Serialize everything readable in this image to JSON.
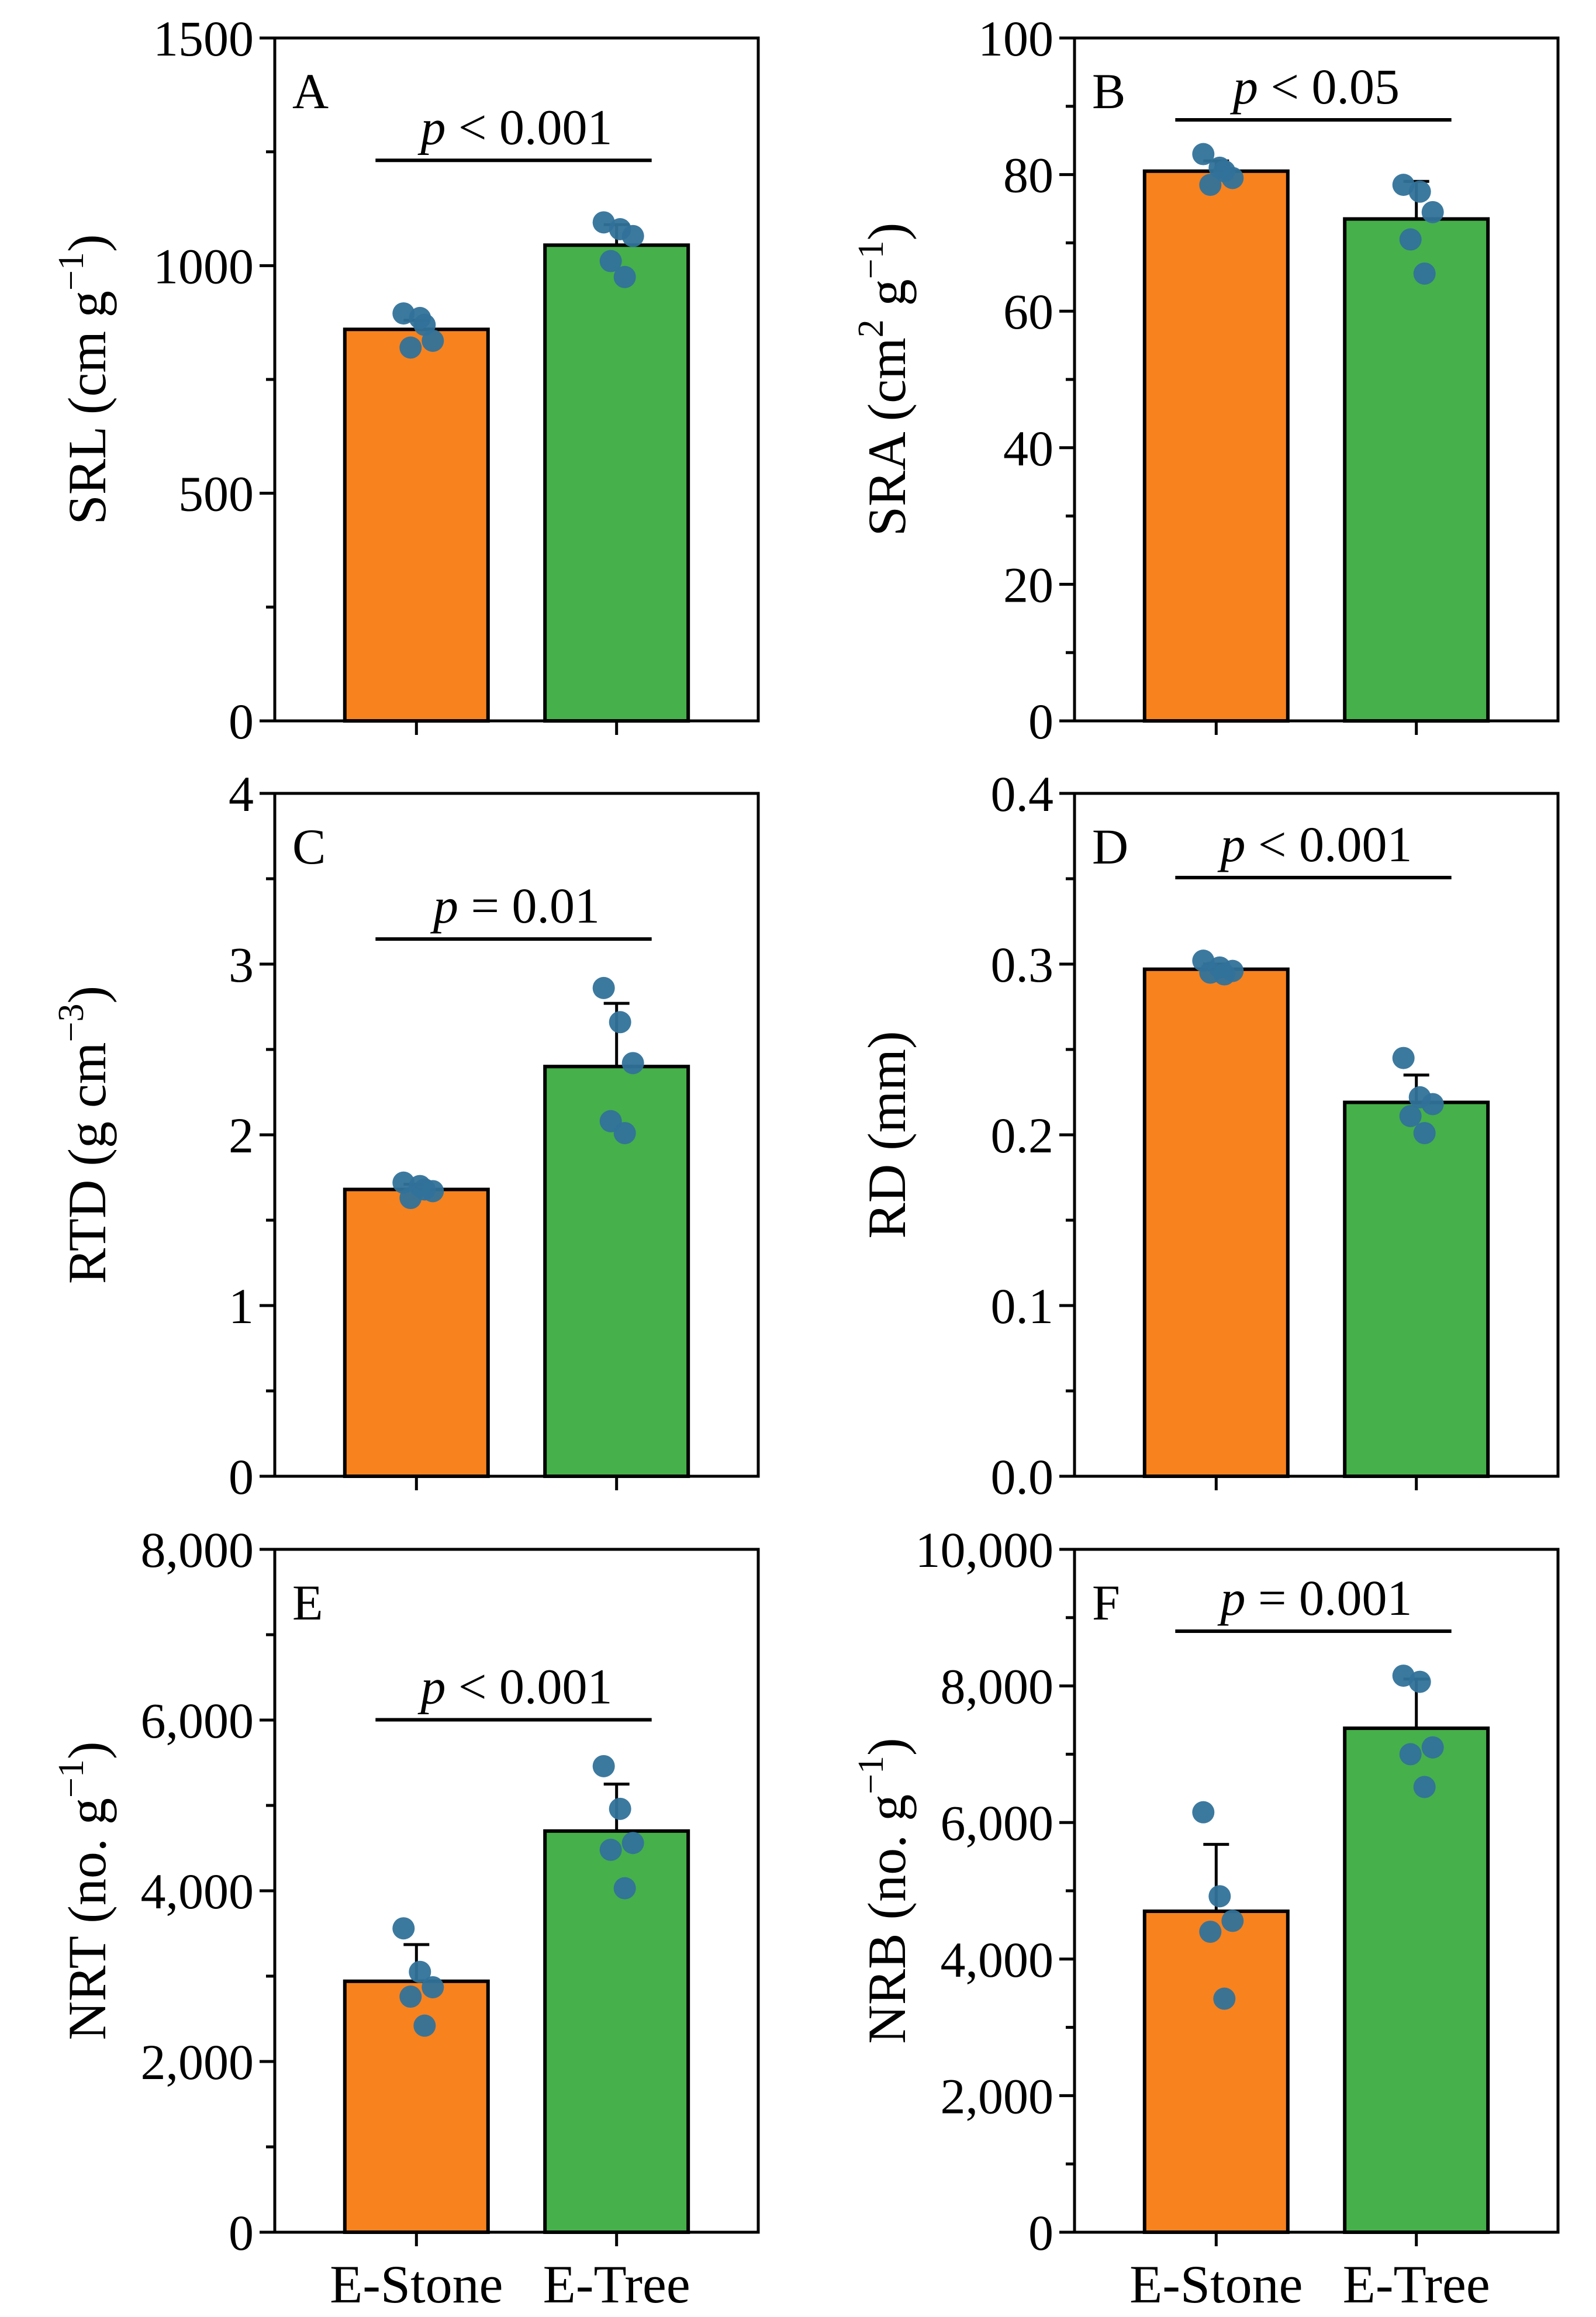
{
  "figure": {
    "categories": [
      "E-Stone",
      "E-Tree"
    ],
    "bar_colors": [
      "#F8821E",
      "#46B04A"
    ],
    "point_color": "#31729A"
  },
  "chart_data": [
    {
      "type": "bar",
      "panel": "A",
      "ylabel": "SRL (cm g",
      "ylabel_sup": "−1",
      "ylabel_tail": ")",
      "ylim": [
        0,
        1500
      ],
      "ticks": [
        0,
        500,
        1000,
        1500
      ],
      "tick_labels": [
        "0",
        "500",
        "1000",
        "1500"
      ],
      "categories": [
        "E-Stone",
        "E-Tree"
      ],
      "values": [
        860,
        1045
      ],
      "errors": [
        20,
        45
      ],
      "points": [
        [
          895,
          885,
          835,
          820,
          870
        ],
        [
          1095,
          1080,
          1065,
          1010,
          975
        ]
      ],
      "stat": {
        "italic": "p",
        "rest": " < 0.001"
      }
    },
    {
      "type": "bar",
      "panel": "B",
      "ylabel": "SRA (cm",
      "ylabel_sup": "2",
      "ylabel_mid": " g",
      "ylabel_sup2": "−1",
      "ylabel_tail": ")",
      "ylim": [
        0,
        100
      ],
      "ticks": [
        0,
        20,
        40,
        60,
        80,
        100
      ],
      "tick_labels": [
        "0",
        "20",
        "40",
        "60",
        "80",
        "100"
      ],
      "categories": [
        "E-Stone",
        "E-Tree"
      ],
      "values": [
        80.5,
        73.5
      ],
      "errors": [
        1.5,
        5.5
      ],
      "points": [
        [
          83,
          81,
          79.5,
          78.5,
          80.5
        ],
        [
          78.5,
          77.5,
          74.5,
          70.5,
          65.5
        ]
      ],
      "stat": {
        "italic": "p",
        "rest": " < 0.05"
      }
    },
    {
      "type": "bar",
      "panel": "C",
      "ylabel": "RTD (g cm",
      "ylabel_sup": "−3",
      "ylabel_tail": ")",
      "ylim": [
        0,
        4
      ],
      "ticks": [
        0,
        1,
        2,
        3,
        4
      ],
      "tick_labels": [
        "0",
        "1",
        "2",
        "3",
        "4"
      ],
      "categories": [
        "E-Stone",
        "E-Tree"
      ],
      "values": [
        1.68,
        2.4
      ],
      "errors": [
        0.03,
        0.37
      ],
      "points": [
        [
          1.72,
          1.7,
          1.67,
          1.63,
          1.68
        ],
        [
          2.86,
          2.66,
          2.42,
          2.08,
          2.01
        ]
      ],
      "stat": {
        "italic": "p",
        "rest": " = 0.01"
      }
    },
    {
      "type": "bar",
      "panel": "D",
      "ylabel": "RD (mm)",
      "ylim": [
        0,
        0.4
      ],
      "ticks": [
        0,
        0.1,
        0.2,
        0.3,
        0.4
      ],
      "tick_labels": [
        "0.0",
        "0.1",
        "0.2",
        "0.3",
        "0.4"
      ],
      "categories": [
        "E-Stone",
        "E-Tree"
      ],
      "values": [
        0.297,
        0.219
      ],
      "errors": [
        0.003,
        0.016
      ],
      "points": [
        [
          0.302,
          0.298,
          0.296,
          0.295,
          0.294
        ],
        [
          0.245,
          0.222,
          0.218,
          0.211,
          0.201
        ]
      ],
      "stat": {
        "italic": "p",
        "rest": " < 0.001"
      }
    },
    {
      "type": "bar",
      "panel": "E",
      "ylabel": "NRT (no. g",
      "ylabel_sup": "−1",
      "ylabel_tail": ")",
      "ylim": [
        0,
        8000
      ],
      "ticks": [
        0,
        2000,
        4000,
        6000,
        8000
      ],
      "tick_labels": [
        "0",
        "2,000",
        "4,000",
        "6,000",
        "8,000"
      ],
      "categories": [
        "E-Stone",
        "E-Tree"
      ],
      "values": [
        2940,
        4700
      ],
      "errors": [
        430,
        550
      ],
      "points": [
        [
          3560,
          3050,
          2870,
          2760,
          2420
        ],
        [
          5460,
          4960,
          4560,
          4480,
          4030
        ]
      ],
      "stat": {
        "italic": "p",
        "rest": " < 0.001"
      }
    },
    {
      "type": "bar",
      "panel": "F",
      "ylabel": "NRB (no. g",
      "ylabel_sup": "−1",
      "ylabel_tail": ")",
      "ylim": [
        0,
        10000
      ],
      "ticks": [
        0,
        2000,
        4000,
        6000,
        8000,
        10000
      ],
      "tick_labels": [
        "0",
        "2,000",
        "4,000",
        "6,000",
        "8,000",
        "10,000"
      ],
      "categories": [
        "E-Stone",
        "E-Tree"
      ],
      "values": [
        4700,
        7380
      ],
      "errors": [
        980,
        720
      ],
      "points": [
        [
          6150,
          4920,
          4560,
          4400,
          3420
        ],
        [
          8150,
          8060,
          7100,
          7000,
          6520
        ]
      ],
      "stat": {
        "italic": "p",
        "rest": " = 0.001"
      }
    }
  ]
}
